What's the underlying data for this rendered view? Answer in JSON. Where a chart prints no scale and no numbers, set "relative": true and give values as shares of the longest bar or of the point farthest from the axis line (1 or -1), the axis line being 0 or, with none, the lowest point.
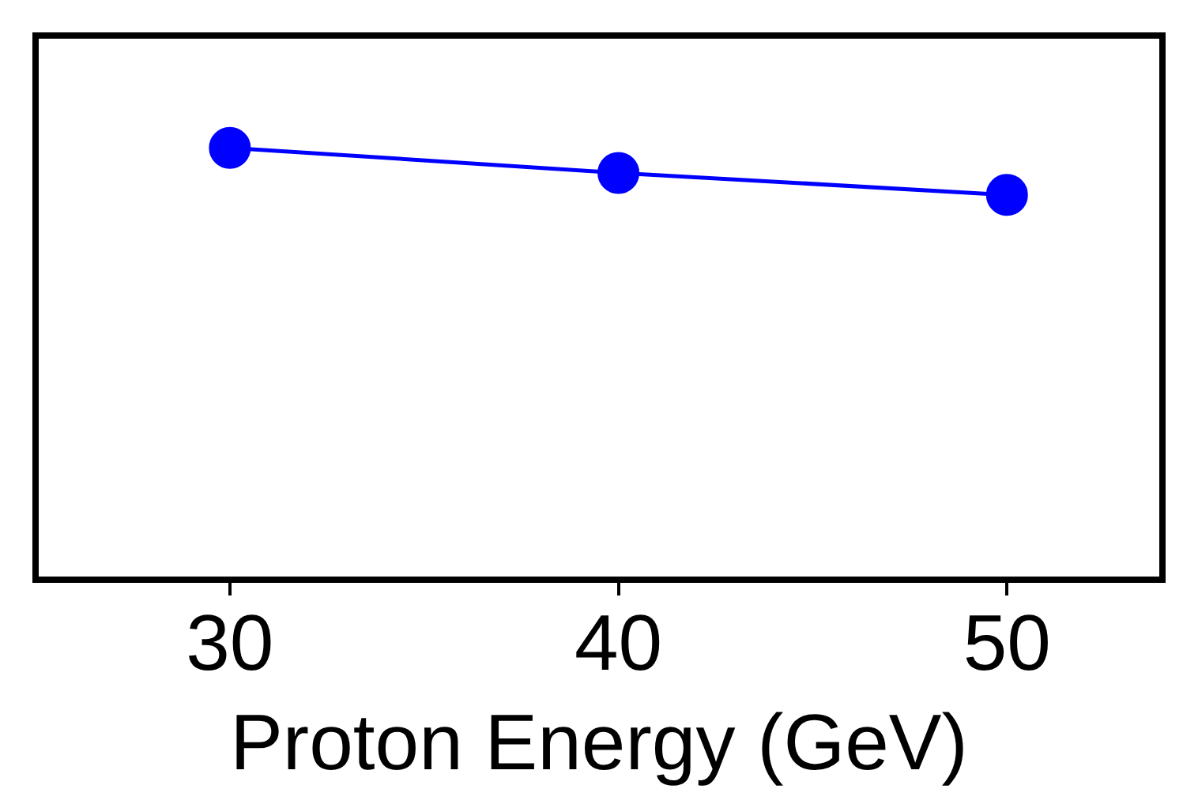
{
  "chart_data": {
    "type": "line",
    "xlabel": "Proton Energy (GeV)",
    "x": [
      30,
      40,
      50
    ],
    "relative": true,
    "series": [
      {
        "color": "#0000ff",
        "values": [
          1,
          0.942,
          0.891
        ]
      }
    ],
    "xlim": [
      25,
      54
    ],
    "xticks": [
      30,
      40,
      50
    ],
    "marker": "circle",
    "line_style": "solid",
    "grid": false,
    "legend": false
  }
}
